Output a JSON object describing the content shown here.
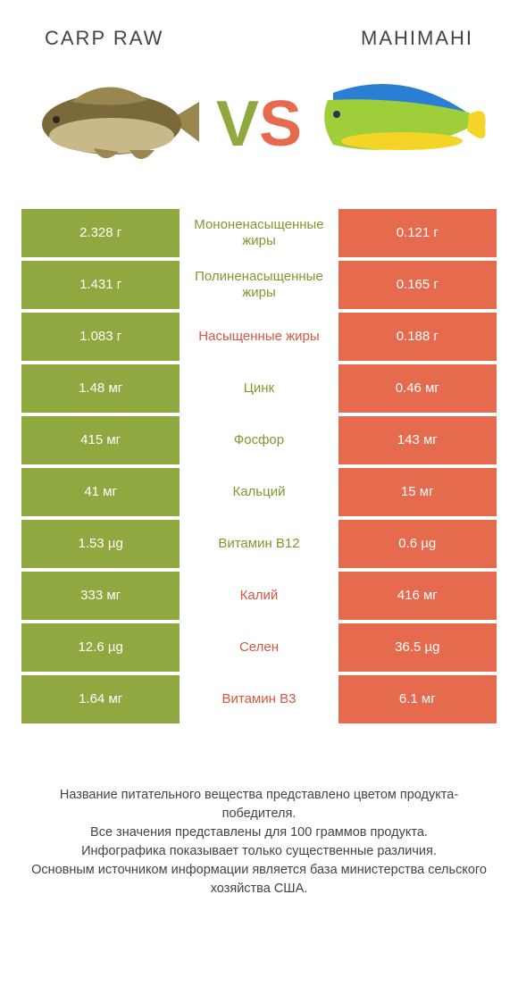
{
  "header": {
    "left_title": "CARP RAW",
    "right_title": "MAHIMAHI",
    "vs_v": "V",
    "vs_s": "S"
  },
  "colors": {
    "green": "#8fa83f",
    "orange": "#e66a4e",
    "green_text": "#7d9a2e",
    "orange_text": "#d5573f",
    "background": "#ffffff"
  },
  "rows": [
    {
      "left": "2.328 г",
      "label": "Мононенасыщенные жиры",
      "right": "0.121 г",
      "winner": "left"
    },
    {
      "left": "1.431 г",
      "label": "Полиненасыщенные жиры",
      "right": "0.165 г",
      "winner": "left"
    },
    {
      "left": "1.083 г",
      "label": "Насыщенные жиры",
      "right": "0.188 г",
      "winner": "right"
    },
    {
      "left": "1.48 мг",
      "label": "Цинк",
      "right": "0.46 мг",
      "winner": "left"
    },
    {
      "left": "415 мг",
      "label": "Фосфор",
      "right": "143 мг",
      "winner": "left"
    },
    {
      "left": "41 мг",
      "label": "Кальций",
      "right": "15 мг",
      "winner": "left"
    },
    {
      "left": "1.53 µg",
      "label": "Витамин B12",
      "right": "0.6 µg",
      "winner": "left"
    },
    {
      "left": "333 мг",
      "label": "Калий",
      "right": "416 мг",
      "winner": "right"
    },
    {
      "left": "12.6 µg",
      "label": "Селен",
      "right": "36.5 µg",
      "winner": "right"
    },
    {
      "left": "1.64 мг",
      "label": "Витамин B3",
      "right": "6.1 мг",
      "winner": "right"
    }
  ],
  "footer": {
    "line1": "Название питательного вещества представлено цветом продукта-победителя.",
    "line2": "Все значения представлены для 100 граммов продукта.",
    "line3": "Инфографика показывает только существенные различия.",
    "line4": "Основным источником информации является база министерства сельского хозяйства США."
  }
}
